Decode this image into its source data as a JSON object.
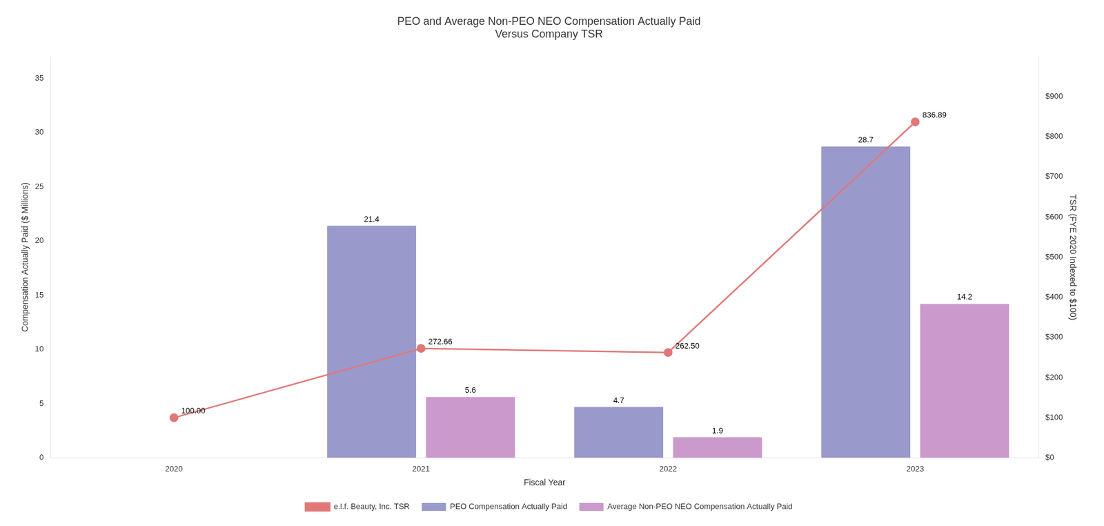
{
  "chart_data": {
    "type": "bar",
    "title": "PEO and Average Non-PEO NEO Compensation Actually Paid\nVersus Company TSR",
    "x_label": "Fiscal Year",
    "y_label": "Compensation Actually Paid ($ Millions)",
    "y2_label": "TSR (FYE 2020 Indexed to $100)",
    "categories": [
      "2020",
      "2021",
      "2022",
      "2023"
    ],
    "series": [
      {
        "name": "PEO Compensation Actually Paid",
        "type": "bar",
        "color": "#9999cc",
        "values": [
          null,
          21.4,
          4.7,
          28.7
        ]
      },
      {
        "name": "Average Non-PEO NEO Compensation Actually Paid",
        "type": "bar",
        "color": "#cc99cc",
        "values": [
          null,
          5.6,
          1.9,
          14.2
        ]
      },
      {
        "name": "e.l.f. Beauty, Inc. TSR",
        "type": "line",
        "axis": "y2",
        "color": "#e07878",
        "marker": "circle",
        "values": [
          100.0,
          272.66,
          262.5,
          836.89
        ],
        "value_labels": [
          "100.00",
          "272.66",
          "262.50",
          "836.89"
        ]
      }
    ],
    "ylim": [
      0,
      37
    ],
    "yticks": [
      0,
      5,
      10,
      15,
      20,
      25,
      30,
      35
    ],
    "y2lim": [
      0,
      1000
    ],
    "y2ticks": [
      {
        "value": 0,
        "label": "$0"
      },
      {
        "value": 100,
        "label": "$100"
      },
      {
        "value": 200,
        "label": "$200"
      },
      {
        "value": 300,
        "label": "$300"
      },
      {
        "value": 400,
        "label": "$400"
      },
      {
        "value": 500,
        "label": "$500"
      },
      {
        "value": 600,
        "label": "$600"
      },
      {
        "value": 700,
        "label": "$700"
      },
      {
        "value": 800,
        "label": "$800"
      },
      {
        "value": 900,
        "label": "$900"
      }
    ],
    "grid": false,
    "legend": "bottom",
    "data_labels": true
  }
}
